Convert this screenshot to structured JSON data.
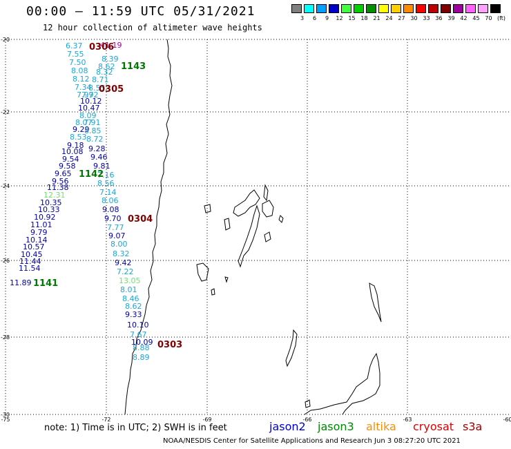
{
  "header": {
    "title": "00:00 – 11:59 UTC 05/31/2021",
    "subtitle": "12 hour collection of altimeter wave heights"
  },
  "color_scale": {
    "unit_label": "(ft)",
    "bins": [
      {
        "label": "3",
        "color": "#808080"
      },
      {
        "label": "6",
        "color": "#00ffff"
      },
      {
        "label": "9",
        "color": "#00a0ff"
      },
      {
        "label": "12",
        "color": "#0000cc"
      },
      {
        "label": "15",
        "color": "#40ff40"
      },
      {
        "label": "18",
        "color": "#00d000"
      },
      {
        "label": "21",
        "color": "#009000"
      },
      {
        "label": "24",
        "color": "#ffff00"
      },
      {
        "label": "27",
        "color": "#ffd000"
      },
      {
        "label": "30",
        "color": "#ff8c00"
      },
      {
        "label": "33",
        "color": "#ff0000"
      },
      {
        "label": "36",
        "color": "#c00000"
      },
      {
        "label": "39",
        "color": "#800000"
      },
      {
        "label": "42",
        "color": "#a000a0"
      },
      {
        "label": "45",
        "color": "#ff60ff"
      },
      {
        "label": "70",
        "color": "#ffa0ff"
      },
      {
        "label": "",
        "color": "#000000"
      }
    ]
  },
  "axes": {
    "lat_labels": [
      "-20",
      "-22",
      "-24",
      "-26",
      "-28",
      "-30"
    ],
    "lon_labels": [
      "-75",
      "-72",
      "-69",
      "-66",
      "-63",
      "-60"
    ]
  },
  "pass_labels": [
    {
      "text": "0306",
      "color": "#800000"
    },
    {
      "text": "0305",
      "color": "#800000"
    },
    {
      "text": "0304",
      "color": "#800000"
    },
    {
      "text": "0303",
      "color": "#800000"
    },
    {
      "text": "1143",
      "color": "#007700"
    },
    {
      "text": "1142",
      "color": "#007700"
    },
    {
      "text": "1141",
      "color": "#007700"
    }
  ],
  "readings": [
    {
      "text": "6.37",
      "color": "#1aa7d8"
    },
    {
      "text": "7.55",
      "color": "#1aa7d8"
    },
    {
      "text": "7.50",
      "color": "#1aa7d8"
    },
    {
      "text": "8.08",
      "color": "#1aa7d8"
    },
    {
      "text": "8.12",
      "color": "#1aa7d8"
    },
    {
      "text": "7.34",
      "color": "#1aa7d8"
    },
    {
      "text": "7.97",
      "color": "#1aa7d8"
    },
    {
      "text": "7.92",
      "color": "#1aa7d8"
    },
    {
      "text": "10.12",
      "color": "#0000aa"
    },
    {
      "text": "10.47",
      "color": "#0000aa"
    },
    {
      "text": "8.09",
      "color": "#1aa7d8"
    },
    {
      "text": "8.07",
      "color": "#1aa7d8"
    },
    {
      "text": "7.91",
      "color": "#1aa7d8"
    },
    {
      "text": "9.29",
      "color": "#0000aa"
    },
    {
      "text": "8.85",
      "color": "#1aa7d8"
    },
    {
      "text": "8.53",
      "color": "#1aa7d8"
    },
    {
      "text": "8.72",
      "color": "#1aa7d8"
    },
    {
      "text": "9.18",
      "color": "#0000aa"
    },
    {
      "text": "9.28",
      "color": "#0000aa"
    },
    {
      "text": "10.08",
      "color": "#0000aa"
    },
    {
      "text": "9.54",
      "color": "#0000aa"
    },
    {
      "text": "9.46",
      "color": "#0000aa"
    },
    {
      "text": "9.58",
      "color": "#0000aa"
    },
    {
      "text": "9.81",
      "color": "#0000aa"
    },
    {
      "text": "9.65",
      "color": "#0000aa"
    },
    {
      "text": "7.16",
      "color": "#1aa7d8"
    },
    {
      "text": "9.56",
      "color": "#0000aa"
    },
    {
      "text": "8.56",
      "color": "#1aa7d8"
    },
    {
      "text": "11.38",
      "color": "#0000aa"
    },
    {
      "text": "7.14",
      "color": "#1aa7d8"
    },
    {
      "text": "12.31",
      "color": "#70e070"
    },
    {
      "text": "8.06",
      "color": "#1aa7d8"
    },
    {
      "text": "10.35",
      "color": "#0000aa"
    },
    {
      "text": "9.08",
      "color": "#0000aa"
    },
    {
      "text": "10.33",
      "color": "#0000aa"
    },
    {
      "text": "10.92",
      "color": "#0000aa"
    },
    {
      "text": "9.70",
      "color": "#0000aa"
    },
    {
      "text": "11.01",
      "color": "#0000aa"
    },
    {
      "text": "7.77",
      "color": "#1aa7d8"
    },
    {
      "text": "9.79",
      "color": "#0000aa"
    },
    {
      "text": "9.07",
      "color": "#0000aa"
    },
    {
      "text": "10.14",
      "color": "#0000aa"
    },
    {
      "text": "8.00",
      "color": "#1aa7d8"
    },
    {
      "text": "10.57",
      "color": "#0000aa"
    },
    {
      "text": "10.45",
      "color": "#0000aa"
    },
    {
      "text": "8.32",
      "color": "#1aa7d8"
    },
    {
      "text": "11.44",
      "color": "#0000aa"
    },
    {
      "text": "9.42",
      "color": "#0000aa"
    },
    {
      "text": "11.54",
      "color": "#0000aa"
    },
    {
      "text": "7.22",
      "color": "#1aa7d8"
    },
    {
      "text": "11.89",
      "color": "#0000aa"
    },
    {
      "text": "13.05",
      "color": "#70e070"
    },
    {
      "text": "8.01",
      "color": "#1aa7d8"
    },
    {
      "text": "8.46",
      "color": "#1aa7d8"
    },
    {
      "text": "8.62",
      "color": "#1aa7d8"
    },
    {
      "text": "9.33",
      "color": "#0000aa"
    },
    {
      "text": "10.10",
      "color": "#0000aa"
    },
    {
      "text": "7.67",
      "color": "#1aa7d8"
    },
    {
      "text": "10.09",
      "color": "#0000aa"
    },
    {
      "text": "8.88",
      "color": "#1aa7d8"
    },
    {
      "text": "8.89",
      "color": "#1aa7d8"
    },
    {
      "text": "41.19",
      "color": "#a000a0"
    },
    {
      "text": "8.39",
      "color": "#1aa7d8"
    },
    {
      "text": "8.62",
      "color": "#1aa7d8"
    },
    {
      "text": "8.32",
      "color": "#1aa7d8"
    },
    {
      "text": "8.71",
      "color": "#1aa7d8"
    },
    {
      "text": "8.55",
      "color": "#1aa7d8"
    },
    {
      "text": "8.72",
      "color": "#1aa7d8"
    },
    {
      "text": "9.10",
      "color": "#0000aa"
    }
  ],
  "footer": {
    "note": "note: 1) Time is in UTC; 2) SWH is in feet",
    "satellites": [
      {
        "name": "jason2",
        "color": "#0000cc"
      },
      {
        "name": "jason3",
        "color": "#008800"
      },
      {
        "name": "altika",
        "color": "#ff8c00"
      },
      {
        "name": "cryosat",
        "color": "#dd0000"
      },
      {
        "name": "s3a",
        "color": "#a00000"
      }
    ],
    "credit": "NOAA/NESDIS Center for Satellite Applications and Research   Jun  3 08:27:20 UTC 2021"
  }
}
